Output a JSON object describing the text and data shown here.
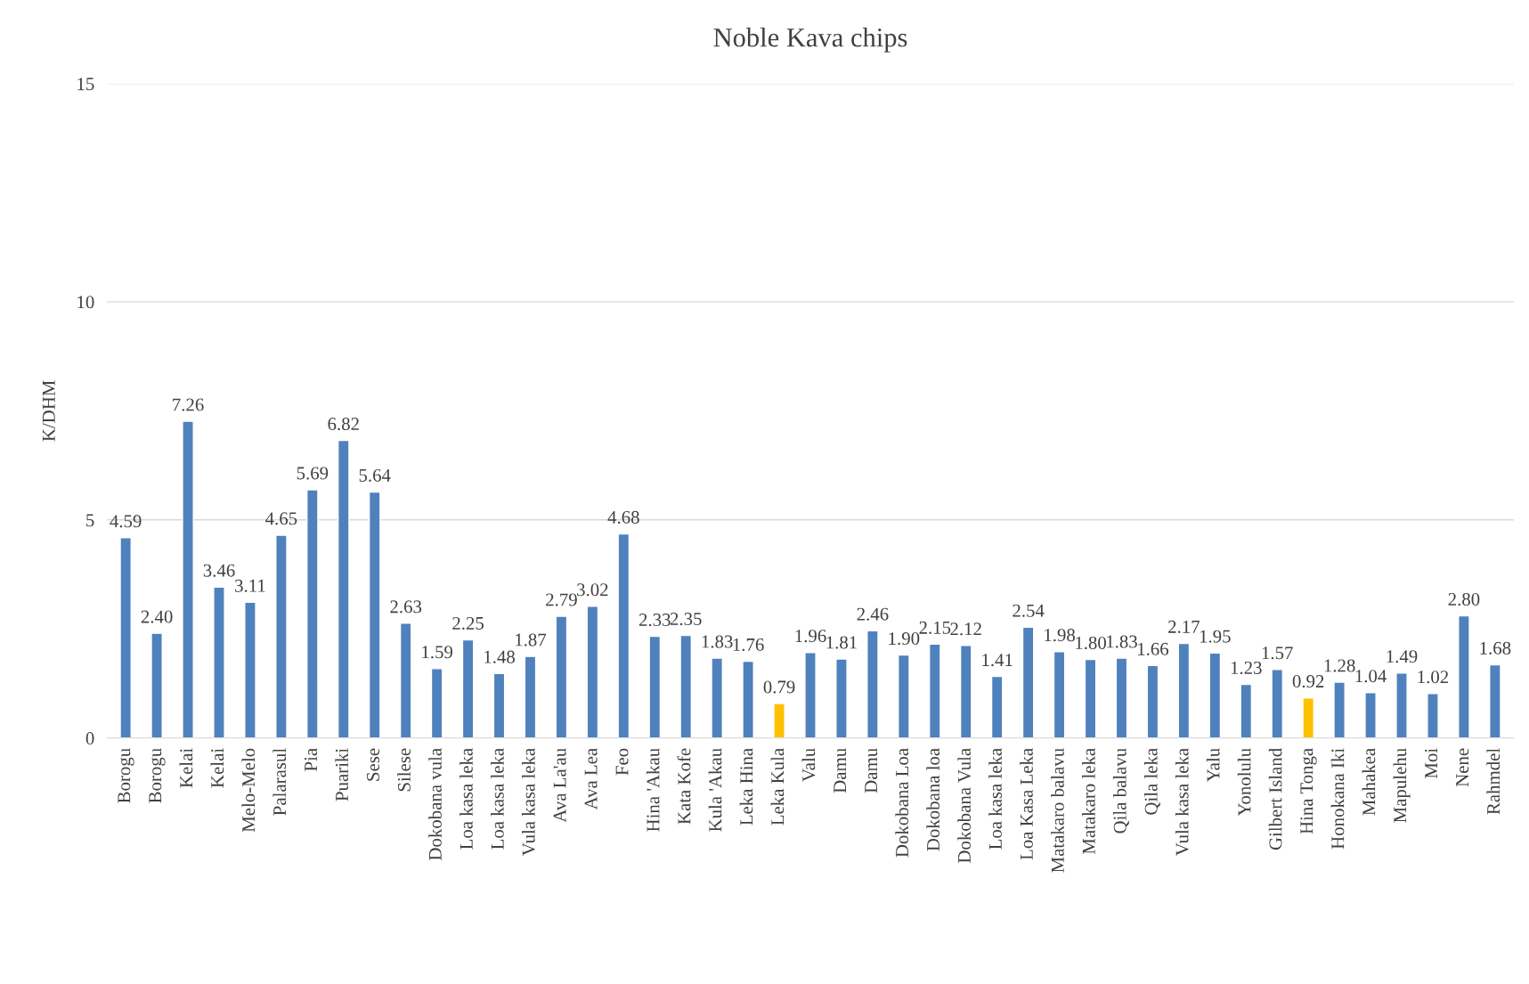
{
  "chart_data": {
    "type": "bar",
    "title": "Noble Kava chips",
    "ylabel": "K/DHM",
    "categories": [
      "Borogu",
      "Borogu",
      "Kelai",
      "Kelai",
      "Melo-Melo",
      "Palarasul",
      "Pia",
      "Puariki",
      "Sese",
      "Silese",
      "Dokobana vula",
      "Loa kasa leka",
      "Loa kasa leka",
      "Vula kasa leka",
      "Ava La'au",
      "Ava Lea",
      "Feo",
      "Hina 'Akau",
      "Kata Kofe",
      "Kula 'Akau",
      "Leka Hina",
      "Leka Kula",
      "Valu",
      "Damu",
      "Damu",
      "Dokobana Loa",
      "Dokobana loa",
      "Dokobana Vula",
      "Loa kasa leka",
      "Loa Kasa Leka",
      "Matakaro balavu",
      "Matakaro leka",
      "Qila balavu",
      "Qila leka",
      "Vula kasa leka",
      "Yalu",
      "Yonolulu",
      "Gilbert Island",
      "Hina Tonga",
      "Honokana Iki",
      "Mahakea",
      "Mapulehu",
      "Moi",
      "Nene",
      "Rahmdel"
    ],
    "values": [
      4.59,
      2.4,
      7.26,
      3.46,
      3.11,
      4.65,
      5.69,
      6.82,
      5.64,
      2.63,
      1.59,
      2.25,
      1.48,
      1.87,
      2.79,
      3.02,
      4.68,
      2.33,
      2.35,
      1.83,
      1.76,
      0.79,
      1.96,
      1.81,
      2.46,
      1.9,
      2.15,
      2.12,
      1.41,
      2.54,
      1.98,
      1.8,
      1.83,
      1.66,
      2.17,
      1.95,
      1.23,
      1.57,
      0.92,
      1.28,
      1.04,
      1.49,
      1.02,
      2.8,
      1.68
    ],
    "value_labels": [
      "4.59",
      "2.40",
      "7.26",
      "3.46",
      "3.11",
      "4.65",
      "5.69",
      "6.82",
      "5.64",
      "2.63",
      "1.59",
      "2.25",
      "1.48",
      "1.87",
      "2.79",
      "3.02",
      "4.68",
      "2.33",
      "2.35",
      "1.83",
      "1.76",
      "0.79",
      "1.96",
      "1.81",
      "2.46",
      "1.90",
      "2.15",
      "2.12",
      "1.41",
      "2.54",
      "1.98",
      "1.80",
      "1.83",
      "1.66",
      "2.17",
      "1.95",
      "1.23",
      "1.57",
      "0.92",
      "1.28",
      "1.04",
      "1.49",
      "1.02",
      "2.80",
      "1.68"
    ],
    "colors": [
      "#4f81bd",
      "#4f81bd",
      "#4f81bd",
      "#4f81bd",
      "#4f81bd",
      "#4f81bd",
      "#4f81bd",
      "#4f81bd",
      "#4f81bd",
      "#4f81bd",
      "#4f81bd",
      "#4f81bd",
      "#4f81bd",
      "#4f81bd",
      "#4f81bd",
      "#4f81bd",
      "#4f81bd",
      "#4f81bd",
      "#4f81bd",
      "#4f81bd",
      "#4f81bd",
      "#ffc000",
      "#4f81bd",
      "#4f81bd",
      "#4f81bd",
      "#4f81bd",
      "#4f81bd",
      "#4f81bd",
      "#4f81bd",
      "#4f81bd",
      "#4f81bd",
      "#4f81bd",
      "#4f81bd",
      "#4f81bd",
      "#4f81bd",
      "#4f81bd",
      "#4f81bd",
      "#4f81bd",
      "#ffc000",
      "#4f81bd",
      "#4f81bd",
      "#4f81bd",
      "#4f81bd",
      "#4f81bd",
      "#4f81bd"
    ],
    "ylim": [
      0,
      15
    ],
    "yticks": [
      0,
      5,
      10,
      15
    ],
    "grid": "y",
    "legend": false
  }
}
